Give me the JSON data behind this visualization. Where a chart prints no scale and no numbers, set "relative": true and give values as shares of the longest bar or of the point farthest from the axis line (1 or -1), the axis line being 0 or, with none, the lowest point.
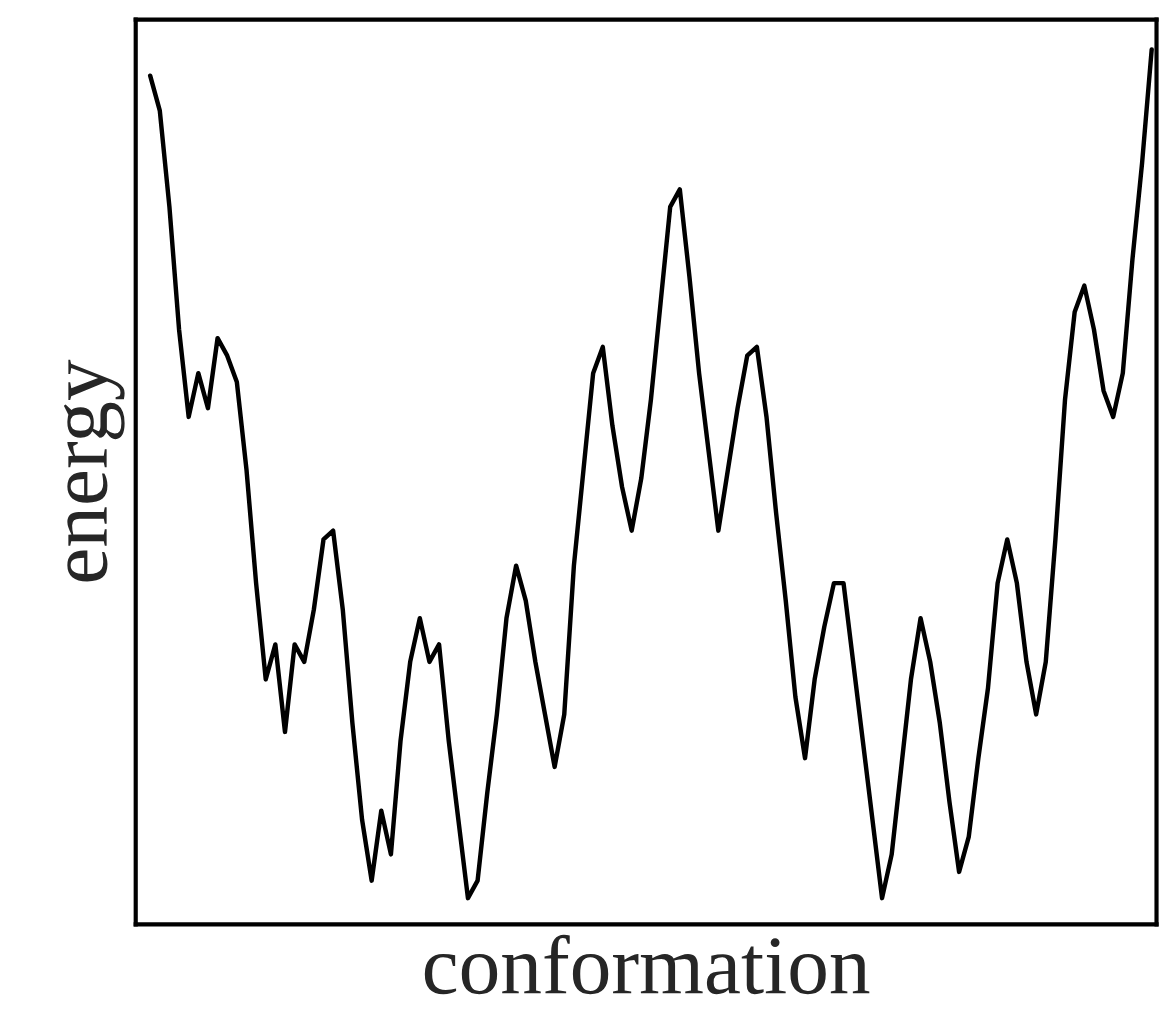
{
  "chart_data": {
    "type": "line",
    "xlabel": "conformation",
    "ylabel": "energy",
    "relative": true,
    "categories": [
      null,
      null,
      null,
      null,
      null,
      null,
      null,
      null,
      null,
      null,
      null,
      null,
      null,
      null,
      null,
      null,
      null,
      null,
      null,
      null,
      null,
      null,
      null,
      null,
      null,
      null,
      null,
      null,
      null,
      null,
      null,
      null,
      null,
      null,
      null,
      null,
      null,
      null,
      null,
      null,
      null,
      null,
      null,
      null,
      null,
      null,
      null,
      null,
      null,
      null,
      null,
      null,
      null,
      null,
      null,
      null,
      null,
      null,
      null,
      null,
      null,
      null,
      null,
      null,
      null,
      null,
      null,
      null,
      null,
      null,
      null,
      null,
      null,
      null,
      null,
      null,
      null,
      null,
      null,
      null,
      null,
      null,
      null,
      null,
      null,
      null,
      null,
      null,
      null,
      null,
      null,
      null,
      null,
      null,
      null,
      null,
      null,
      null,
      null,
      null,
      null,
      null,
      null,
      null,
      null
    ],
    "series": [
      {
        "color": "#000000",
        "values": [
          0.97,
          0.93,
          0.82,
          0.68,
          0.58,
          0.63,
          0.59,
          0.67,
          0.65,
          0.62,
          0.52,
          0.39,
          0.28,
          0.32,
          0.22,
          0.32,
          0.3,
          0.36,
          0.44,
          0.45,
          0.36,
          0.23,
          0.12,
          0.05,
          0.13,
          0.08,
          0.21,
          0.3,
          0.35,
          0.3,
          0.32,
          0.21,
          0.12,
          0.03,
          0.05,
          0.15,
          0.24,
          0.35,
          0.41,
          0.37,
          0.3,
          0.24,
          0.18,
          0.24,
          0.41,
          0.52,
          0.63,
          0.66,
          0.57,
          0.5,
          0.45,
          0.51,
          0.6,
          0.71,
          0.82,
          0.84,
          0.74,
          0.63,
          0.54,
          0.45,
          0.52,
          0.59,
          0.65,
          0.66,
          0.58,
          0.47,
          0.37,
          0.26,
          0.19,
          0.28,
          0.34,
          0.39,
          0.39,
          0.3,
          0.21,
          0.12,
          0.03,
          0.08,
          0.18,
          0.28,
          0.35,
          0.3,
          0.23,
          0.14,
          0.06,
          0.1,
          0.19,
          0.27,
          0.39,
          0.44,
          0.39,
          0.3,
          0.24,
          0.3,
          0.44,
          0.6,
          0.7,
          0.73,
          0.68,
          0.61,
          0.58,
          0.63,
          0.76,
          0.87,
          1.0
        ]
      }
    ]
  }
}
